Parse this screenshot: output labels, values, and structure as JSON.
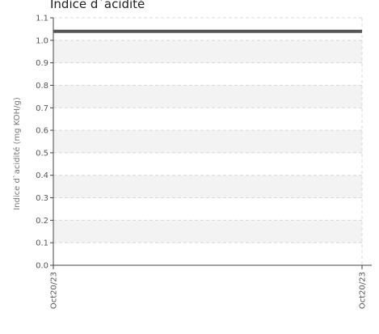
{
  "chart_data": {
    "type": "line",
    "title": "Indice d`acidité",
    "ylabel": "Indice d`acidité (mg KOH/g)",
    "xlabel": "",
    "x_tick_labels": [
      "Oct20/23",
      "Oct20/23"
    ],
    "y_tick_labels": [
      "0.0",
      "0.1",
      "0.2",
      "0.3",
      "0.4",
      "0.5",
      "0.6",
      "0.7",
      "0.8",
      "0.9",
      "1.0",
      "1.1"
    ],
    "y_ticks": [
      0.0,
      0.1,
      0.2,
      0.3,
      0.4,
      0.5,
      0.6,
      0.7,
      0.8,
      0.9,
      1.0,
      1.1
    ],
    "ylim": [
      0.0,
      1.1
    ],
    "grid": true,
    "series": [
      {
        "values": [
          1.04,
          1.04
        ],
        "color": "#555555"
      }
    ],
    "colors": {
      "band": "#f3f3f3",
      "grid": "#d8d8d8",
      "axis": "#444444",
      "line": "#555555"
    }
  }
}
